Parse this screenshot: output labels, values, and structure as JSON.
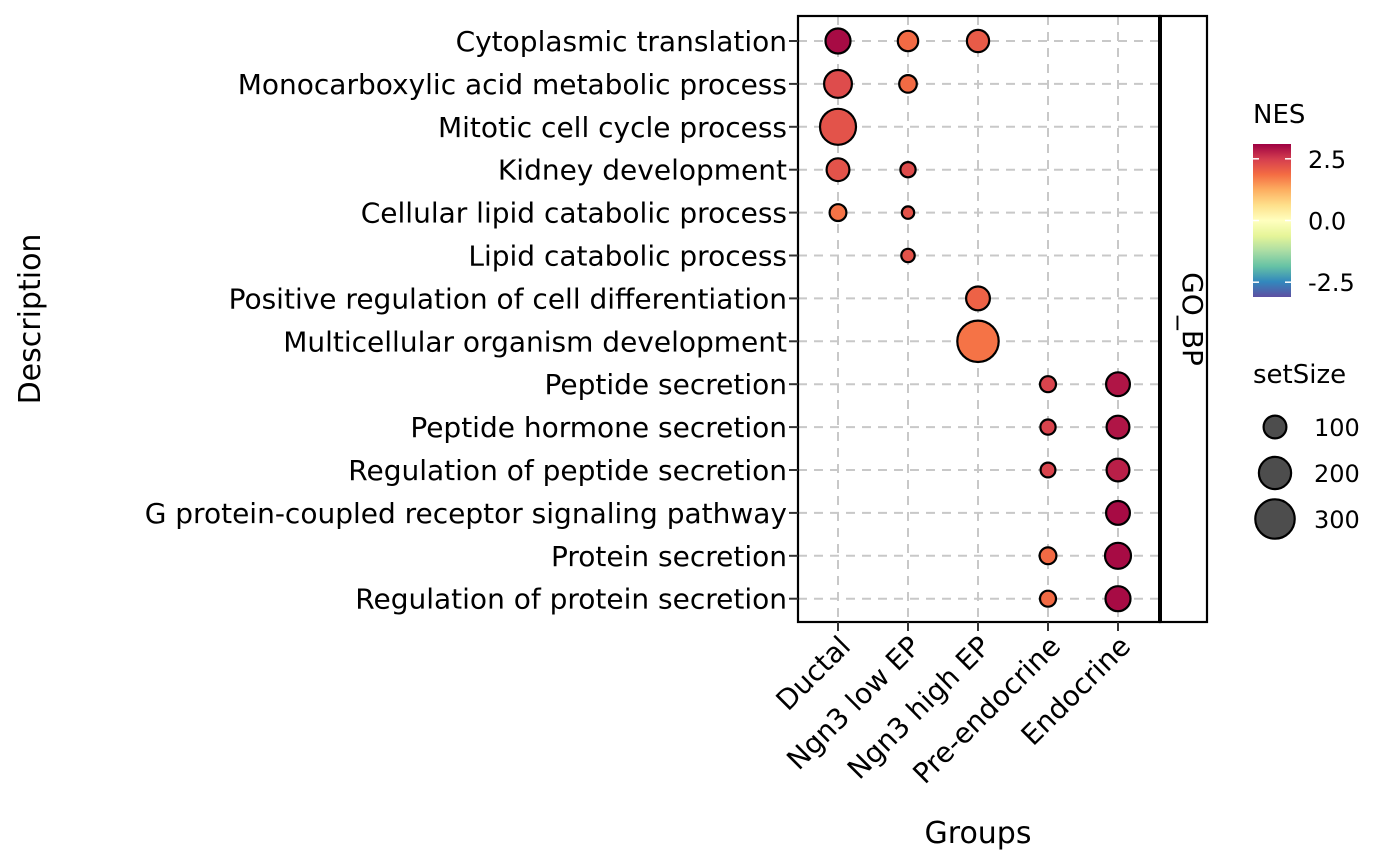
{
  "chart_data": {
    "type": "scatter",
    "xlabel": "Groups",
    "ylabel": "Description",
    "facet_label": "GO_BP",
    "categories_x": [
      "Ductal",
      "Ngn3 low EP",
      "Ngn3 high EP",
      "Pre-endocrine",
      "Endocrine"
    ],
    "categories_y": [
      "Cytoplasmic translation",
      "Monocarboxylic acid metabolic process",
      "Mitotic cell cycle process",
      "Kidney development",
      "Cellular lipid catabolic process",
      "Lipid catabolic process",
      "Positive regulation of cell differentiation",
      "Multicellular organism development",
      "Peptide secretion",
      "Peptide hormone secretion",
      "Regulation of peptide secretion",
      "G protein-coupled receptor signaling pathway",
      "Protein secretion",
      "Regulation of protein secretion"
    ],
    "grid": true,
    "points": [
      {
        "x": "Ductal",
        "y": "Cytoplasmic translation",
        "nes": 3.0,
        "setSize": 120
      },
      {
        "x": "Ngn3 low EP",
        "y": "Cytoplasmic translation",
        "nes": 1.9,
        "setSize": 80
      },
      {
        "x": "Ngn3 high EP",
        "y": "Cytoplasmic translation",
        "nes": 2.1,
        "setSize": 95
      },
      {
        "x": "Ductal",
        "y": "Monocarboxylic acid metabolic process",
        "nes": 2.3,
        "setSize": 150
      },
      {
        "x": "Ngn3 low EP",
        "y": "Monocarboxylic acid metabolic process",
        "nes": 1.9,
        "setSize": 60
      },
      {
        "x": "Ductal",
        "y": "Mitotic cell cycle process",
        "nes": 2.2,
        "setSize": 250
      },
      {
        "x": "Ductal",
        "y": "Kidney development",
        "nes": 2.2,
        "setSize": 100
      },
      {
        "x": "Ngn3 low EP",
        "y": "Kidney development",
        "nes": 2.3,
        "setSize": 45
      },
      {
        "x": "Ductal",
        "y": "Cellular lipid catabolic process",
        "nes": 1.8,
        "setSize": 55
      },
      {
        "x": "Ngn3 low EP",
        "y": "Cellular lipid catabolic process",
        "nes": 2.2,
        "setSize": 30
      },
      {
        "x": "Ngn3 low EP",
        "y": "Lipid catabolic process",
        "nes": 2.2,
        "setSize": 35
      },
      {
        "x": "Ngn3 high EP",
        "y": "Positive regulation of cell differentiation",
        "nes": 2.0,
        "setSize": 110
      },
      {
        "x": "Ngn3 high EP",
        "y": "Multicellular organism development",
        "nes": 1.8,
        "setSize": 330
      },
      {
        "x": "Pre-endocrine",
        "y": "Peptide secretion",
        "nes": 2.4,
        "setSize": 50
      },
      {
        "x": "Endocrine",
        "y": "Peptide secretion",
        "nes": 2.9,
        "setSize": 110
      },
      {
        "x": "Pre-endocrine",
        "y": "Peptide hormone secretion",
        "nes": 2.4,
        "setSize": 45
      },
      {
        "x": "Endocrine",
        "y": "Peptide hormone secretion",
        "nes": 2.9,
        "setSize": 100
      },
      {
        "x": "Pre-endocrine",
        "y": "Regulation of peptide secretion",
        "nes": 2.4,
        "setSize": 42
      },
      {
        "x": "Endocrine",
        "y": "Regulation of peptide secretion",
        "nes": 2.8,
        "setSize": 100
      },
      {
        "x": "Endocrine",
        "y": "G protein-coupled receptor signaling pathway",
        "nes": 3.0,
        "setSize": 110
      },
      {
        "x": "Pre-endocrine",
        "y": "Protein secretion",
        "nes": 1.9,
        "setSize": 55
      },
      {
        "x": "Endocrine",
        "y": "Protein secretion",
        "nes": 3.0,
        "setSize": 130
      },
      {
        "x": "Pre-endocrine",
        "y": "Regulation of protein secretion",
        "nes": 1.9,
        "setSize": 50
      },
      {
        "x": "Endocrine",
        "y": "Regulation of protein secretion",
        "nes": 3.0,
        "setSize": 120
      }
    ],
    "color_legend": {
      "title": "NES",
      "range": [
        -3.1,
        3.1
      ],
      "ticks": [
        2.5,
        0.0,
        -2.5
      ],
      "tick_labels": [
        "2.5",
        "0.0",
        "-2.5"
      ],
      "colors": [
        "#5E4FA2",
        "#3288BD",
        "#66C2A5",
        "#ABDDA4",
        "#E6F598",
        "#FFFFBF",
        "#FEE08B",
        "#FDAE61",
        "#F46D43",
        "#D53E4F",
        "#9E0142"
      ]
    },
    "size_legend": {
      "title": "setSize",
      "values": [
        100,
        200,
        300
      ],
      "labels": [
        "100",
        "200",
        "300"
      ],
      "point_fill": "#4d4d4d"
    }
  }
}
